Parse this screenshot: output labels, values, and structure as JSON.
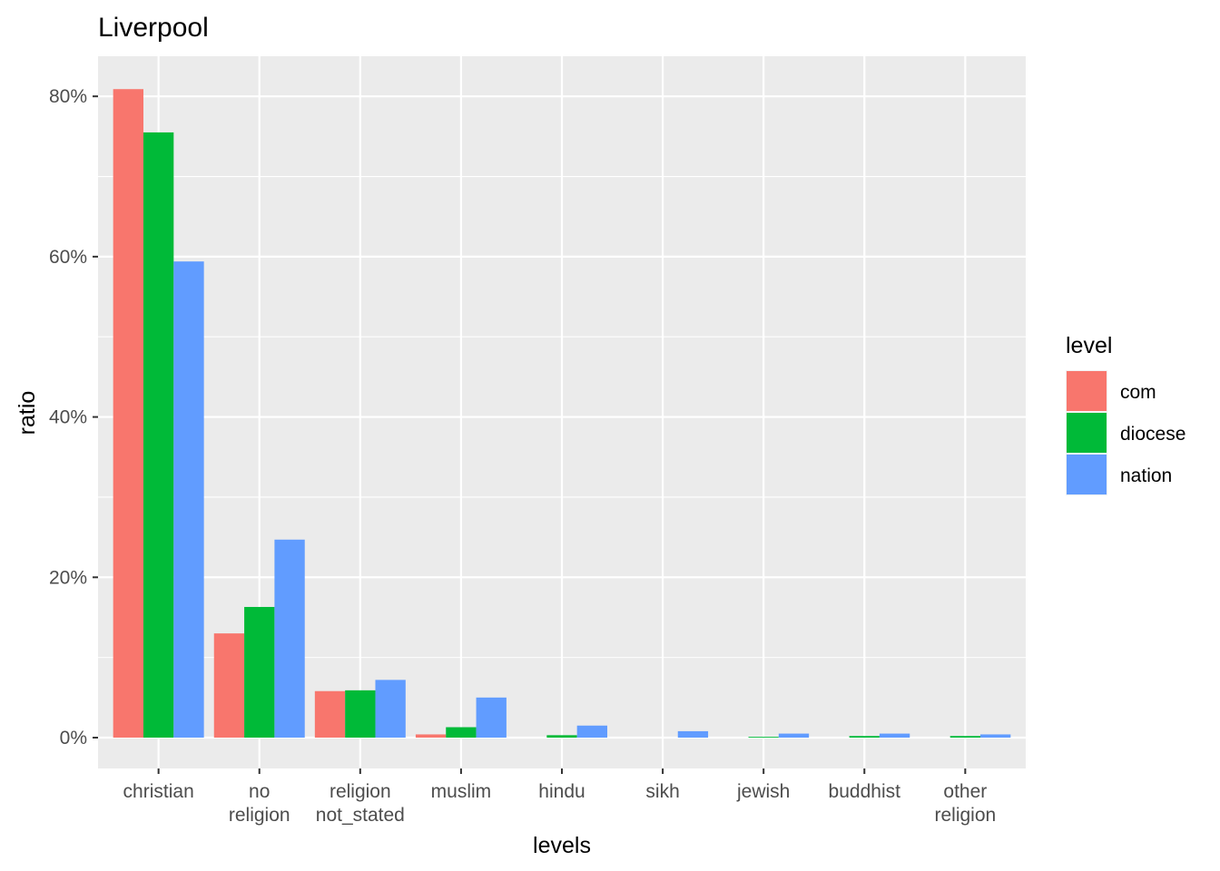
{
  "chart_data": {
    "type": "bar",
    "title": "Liverpool",
    "xlabel": "levels",
    "ylabel": "ratio",
    "categories": [
      [
        "christian"
      ],
      [
        "no",
        "religion"
      ],
      [
        "religion",
        "not_stated"
      ],
      [
        "muslim"
      ],
      [
        "hindu"
      ],
      [
        "sikh"
      ],
      [
        "jewish"
      ],
      [
        "buddhist"
      ],
      [
        "other",
        "religion"
      ]
    ],
    "series": [
      {
        "name": "com",
        "color": "#F8766D",
        "values": [
          0.809,
          0.13,
          0.058,
          0.004,
          0.0,
          0.0,
          0.0,
          0.0,
          0.0
        ]
      },
      {
        "name": "diocese",
        "color": "#00BA38",
        "values": [
          0.755,
          0.163,
          0.059,
          0.013,
          0.003,
          0.0,
          0.001,
          0.002,
          0.002
        ]
      },
      {
        "name": "nation",
        "color": "#619CFF",
        "values": [
          0.594,
          0.247,
          0.072,
          0.05,
          0.015,
          0.008,
          0.005,
          0.005,
          0.004
        ]
      }
    ],
    "ylim": [
      -0.0385,
      0.85
    ],
    "yticks": [
      0,
      0.2,
      0.4,
      0.6,
      0.8
    ],
    "ytick_labels": [
      "0%",
      "20%",
      "40%",
      "60%",
      "80%"
    ],
    "legend": {
      "title": "level",
      "placement": "right"
    },
    "grid": true,
    "panel_background": "#EBEBEB"
  }
}
